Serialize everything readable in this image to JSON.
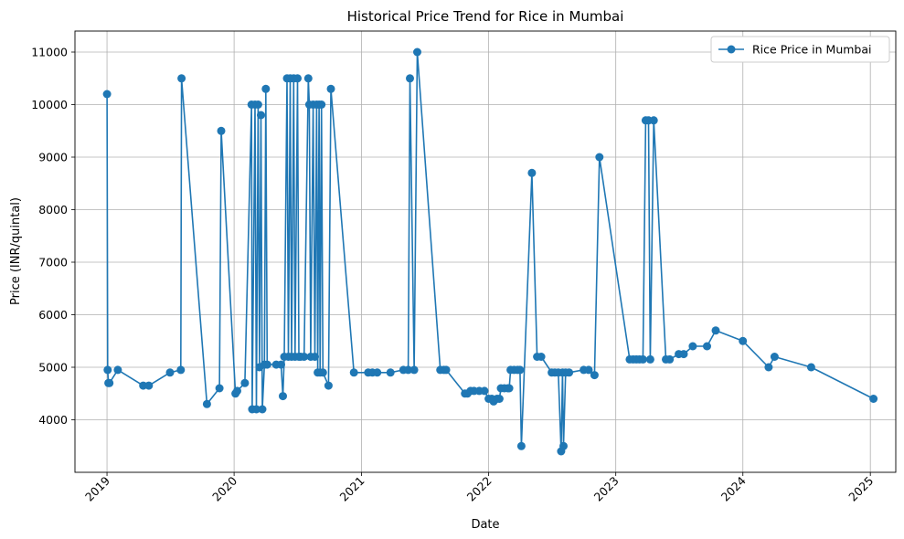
{
  "chart_data": {
    "type": "line",
    "title": "Historical Price Trend for Rice in Mumbai",
    "xlabel": "Date",
    "ylabel": "Price (INR/quintal)",
    "x_ticks": [
      "2019",
      "2020",
      "2021",
      "2022",
      "2023",
      "2024",
      "2025"
    ],
    "y_ticks": [
      4000,
      5000,
      6000,
      7000,
      8000,
      9000,
      10000,
      11000
    ],
    "ylim": [
      3000,
      11400
    ],
    "xlim": [
      "2018-10-01",
      "2025-03-15"
    ],
    "grid": true,
    "legend": "upper right",
    "color": "#1f77b4",
    "series": [
      {
        "name": "Rice Price in Mumbai",
        "points": [
          [
            "2019-01-01",
            10200
          ],
          [
            "2019-01-03",
            4950
          ],
          [
            "2019-01-05",
            4700
          ],
          [
            "2019-01-08",
            4700
          ],
          [
            "2019-02-01",
            4950
          ],
          [
            "2019-04-15",
            4650
          ],
          [
            "2019-05-01",
            4650
          ],
          [
            "2019-07-01",
            4900
          ],
          [
            "2019-08-01",
            4950
          ],
          [
            "2019-08-03",
            10500
          ],
          [
            "2019-10-15",
            4300
          ],
          [
            "2019-11-20",
            4600
          ],
          [
            "2019-11-25",
            9500
          ],
          [
            "2020-01-05",
            4500
          ],
          [
            "2020-01-10",
            4550
          ],
          [
            "2020-02-01",
            4700
          ],
          [
            "2020-02-20",
            10000
          ],
          [
            "2020-02-22",
            4200
          ],
          [
            "2020-03-01",
            10000
          ],
          [
            "2020-03-05",
            4200
          ],
          [
            "2020-03-10",
            10000
          ],
          [
            "2020-03-14",
            5000
          ],
          [
            "2020-03-18",
            9800
          ],
          [
            "2020-03-22",
            4200
          ],
          [
            "2020-03-28",
            5050
          ],
          [
            "2020-04-01",
            10300
          ],
          [
            "2020-04-05",
            5050
          ],
          [
            "2020-05-01",
            5050
          ],
          [
            "2020-05-15",
            5050
          ],
          [
            "2020-05-20",
            4450
          ],
          [
            "2020-05-24",
            5200
          ],
          [
            "2020-06-01",
            10500
          ],
          [
            "2020-06-05",
            5200
          ],
          [
            "2020-06-10",
            10500
          ],
          [
            "2020-06-14",
            5200
          ],
          [
            "2020-06-20",
            10500
          ],
          [
            "2020-06-24",
            5200
          ],
          [
            "2020-07-01",
            10500
          ],
          [
            "2020-07-05",
            5200
          ],
          [
            "2020-07-10",
            5200
          ],
          [
            "2020-07-20",
            5200
          ],
          [
            "2020-08-01",
            10500
          ],
          [
            "2020-08-04",
            10000
          ],
          [
            "2020-08-08",
            5200
          ],
          [
            "2020-08-15",
            10000
          ],
          [
            "2020-08-20",
            5200
          ],
          [
            "2020-08-25",
            10000
          ],
          [
            "2020-08-28",
            4900
          ],
          [
            "2020-09-01",
            10000
          ],
          [
            "2020-09-04",
            4900
          ],
          [
            "2020-09-08",
            10000
          ],
          [
            "2020-09-12",
            4900
          ],
          [
            "2020-09-28",
            4650
          ],
          [
            "2020-10-05",
            10300
          ],
          [
            "2020-12-10",
            4900
          ],
          [
            "2021-01-20",
            4900
          ],
          [
            "2021-02-01",
            4900
          ],
          [
            "2021-02-15",
            4900
          ],
          [
            "2021-03-25",
            4900
          ],
          [
            "2021-05-01",
            4950
          ],
          [
            "2021-05-15",
            4950
          ],
          [
            "2021-05-20",
            10500
          ],
          [
            "2021-06-01",
            4950
          ],
          [
            "2021-06-10",
            11000
          ],
          [
            "2021-08-15",
            4950
          ],
          [
            "2021-08-25",
            4950
          ],
          [
            "2021-09-01",
            4950
          ],
          [
            "2021-10-25",
            4500
          ],
          [
            "2021-11-01",
            4500
          ],
          [
            "2021-11-10",
            4550
          ],
          [
            "2021-11-20",
            4550
          ],
          [
            "2021-12-05",
            4550
          ],
          [
            "2021-12-20",
            4550
          ],
          [
            "2022-01-01",
            4400
          ],
          [
            "2022-01-10",
            4400
          ],
          [
            "2022-01-15",
            4350
          ],
          [
            "2022-01-25",
            4400
          ],
          [
            "2022-02-01",
            4400
          ],
          [
            "2022-02-05",
            4600
          ],
          [
            "2022-02-15",
            4600
          ],
          [
            "2022-02-25",
            4600
          ],
          [
            "2022-03-01",
            4600
          ],
          [
            "2022-03-05",
            4950
          ],
          [
            "2022-03-15",
            4950
          ],
          [
            "2022-03-25",
            4950
          ],
          [
            "2022-04-01",
            4950
          ],
          [
            "2022-04-05",
            3500
          ],
          [
            "2022-05-05",
            8700
          ],
          [
            "2022-05-20",
            5200
          ],
          [
            "2022-06-01",
            5200
          ],
          [
            "2022-07-01",
            4900
          ],
          [
            "2022-07-10",
            4900
          ],
          [
            "2022-07-20",
            4900
          ],
          [
            "2022-07-28",
            3400
          ],
          [
            "2022-08-01",
            4900
          ],
          [
            "2022-08-04",
            3500
          ],
          [
            "2022-08-10",
            4900
          ],
          [
            "2022-08-20",
            4900
          ],
          [
            "2022-10-01",
            4950
          ],
          [
            "2022-10-15",
            4950
          ],
          [
            "2022-11-01",
            4850
          ],
          [
            "2022-11-15",
            9000
          ],
          [
            "2023-02-10",
            5150
          ],
          [
            "2023-02-20",
            5150
          ],
          [
            "2023-03-01",
            5150
          ],
          [
            "2023-03-10",
            5150
          ],
          [
            "2023-03-20",
            5150
          ],
          [
            "2023-03-28",
            9700
          ],
          [
            "2023-04-05",
            9700
          ],
          [
            "2023-04-10",
            5150
          ],
          [
            "2023-04-20",
            9700
          ],
          [
            "2023-05-25",
            5150
          ],
          [
            "2023-06-05",
            5150
          ],
          [
            "2023-07-01",
            5250
          ],
          [
            "2023-07-15",
            5250
          ],
          [
            "2023-08-10",
            5400
          ],
          [
            "2023-09-20",
            5400
          ],
          [
            "2023-10-15",
            5700
          ],
          [
            "2024-01-01",
            5500
          ],
          [
            "2024-03-15",
            5000
          ],
          [
            "2024-04-01",
            5200
          ],
          [
            "2024-07-15",
            5000
          ],
          [
            "2025-01-10",
            4400
          ]
        ]
      }
    ]
  }
}
